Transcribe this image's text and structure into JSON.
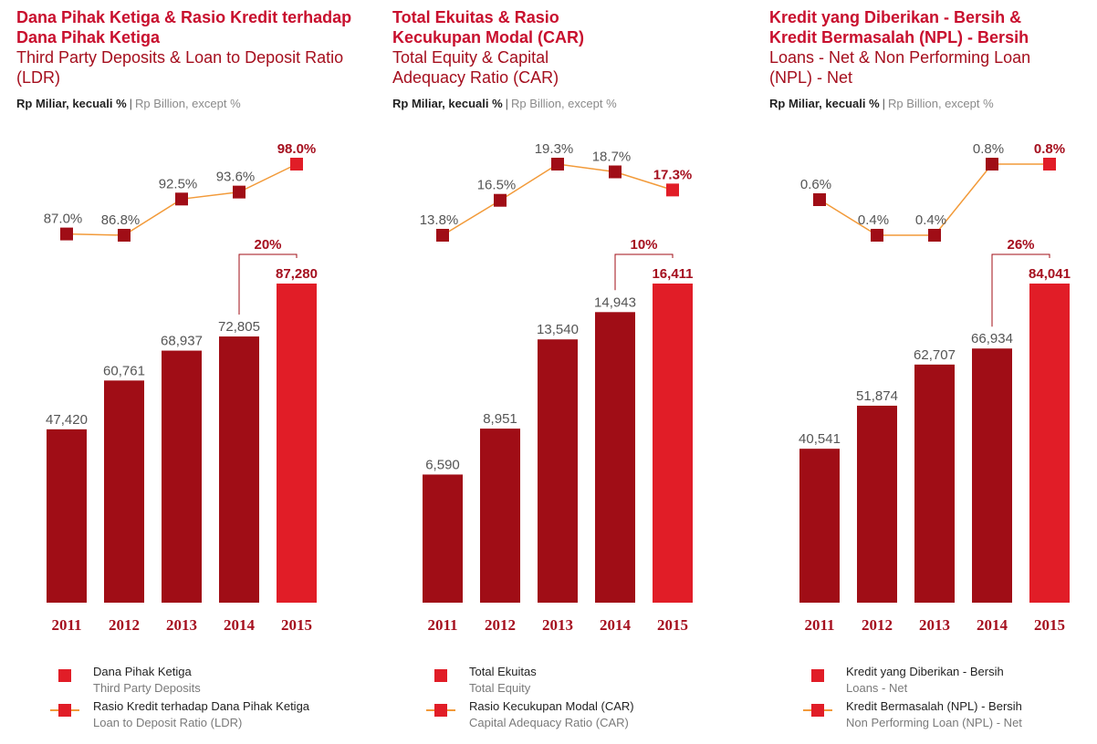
{
  "panels": [
    {
      "title_id": "Dana Pihak Ketiga & Rasio Kredit terhadap Dana Pihak Ketiga",
      "title_en": "Third Party Deposits & Loan to Deposit Ratio (LDR)",
      "unit_id": "Rp Miliar, kecuali %",
      "unit_sep": "|",
      "unit_en": "Rp Billion, except %",
      "legend": [
        {
          "id": "Dana Pihak Ketiga",
          "en": "Third Party Deposits",
          "type": "bar"
        },
        {
          "id": "Rasio Kredit terhadap Dana Pihak Ketiga",
          "en": "Loan to Deposit Ratio (LDR)",
          "type": "line"
        }
      ]
    },
    {
      "title_id": "Total Ekuitas & Rasio Kecukupan Modal (CAR)",
      "title_en": "Total Equity & Capital Adequacy Ratio (CAR)",
      "unit_id": "Rp Miliar, kecuali %",
      "unit_sep": "|",
      "unit_en": "Rp Billion, except %",
      "legend": [
        {
          "id": "Total Ekuitas",
          "en": "Total Equity",
          "type": "bar"
        },
        {
          "id": "Rasio Kecukupan Modal (CAR)",
          "en": "Capital Adequacy Ratio (CAR)",
          "type": "line"
        }
      ]
    },
    {
      "title_id": "Kredit yang Diberikan - Bersih & Kredit Bermasalah (NPL) - Bersih",
      "title_en": "Loans - Net & Non Performing Loan (NPL) - Net",
      "unit_id": "Rp Miliar, kecuali %",
      "unit_sep": "|",
      "unit_en": "Rp Billion, except %",
      "legend": [
        {
          "id": "Kredit yang Diberikan - Bersih",
          "en": "Loans - Net",
          "type": "bar"
        },
        {
          "id": "Kredit Bermasalah (NPL) - Bersih",
          "en": "Non Performing Loan (NPL) - Net",
          "type": "line"
        }
      ]
    }
  ],
  "colors": {
    "bar": "#a00d16",
    "bar_highlight": "#e11d27",
    "line": "#f29a39",
    "label": "#555555",
    "label_highlight": "#a50f1e",
    "year": "#a50f1e"
  },
  "chart_data": [
    {
      "type": "bar",
      "categories": [
        "2011",
        "2012",
        "2013",
        "2014",
        "2015"
      ],
      "values": [
        47420,
        60761,
        68937,
        72805,
        87280
      ],
      "value_labels": [
        "47,420",
        "60,761",
        "68,937",
        "72,805",
        "87,280"
      ],
      "line_values": [
        87.0,
        86.8,
        92.5,
        93.6,
        98.0
      ],
      "line_labels": [
        "87.0%",
        "86.8%",
        "92.5%",
        "93.6%",
        "98.0%"
      ],
      "growth_label": "20%",
      "ylim": [
        0,
        87280
      ],
      "line_ylim": [
        86.8,
        98.0
      ]
    },
    {
      "type": "bar",
      "categories": [
        "2011",
        "2012",
        "2013",
        "2014",
        "2015"
      ],
      "values": [
        6590,
        8951,
        13540,
        14943,
        16411
      ],
      "value_labels": [
        "6,590",
        "8,951",
        "13,540",
        "14,943",
        "16,411"
      ],
      "line_values": [
        13.8,
        16.5,
        19.3,
        18.7,
        17.3
      ],
      "line_labels": [
        "13.8%",
        "16.5%",
        "19.3%",
        "18.7%",
        "17.3%"
      ],
      "growth_label": "10%",
      "ylim": [
        0,
        16411
      ],
      "line_ylim": [
        13.8,
        19.3
      ]
    },
    {
      "type": "bar",
      "categories": [
        "2011",
        "2012",
        "2013",
        "2014",
        "2015"
      ],
      "values": [
        40541,
        51874,
        62707,
        66934,
        84041
      ],
      "value_labels": [
        "40,541",
        "51,874",
        "62,707",
        "66,934",
        "84,041"
      ],
      "line_values": [
        0.6,
        0.4,
        0.4,
        0.8,
        0.8
      ],
      "line_labels": [
        "0.6%",
        "0.4%",
        "0.4%",
        "0.8%",
        "0.8%"
      ],
      "growth_label": "26%",
      "ylim": [
        0,
        84041
      ],
      "line_ylim": [
        0.4,
        0.8
      ]
    }
  ]
}
